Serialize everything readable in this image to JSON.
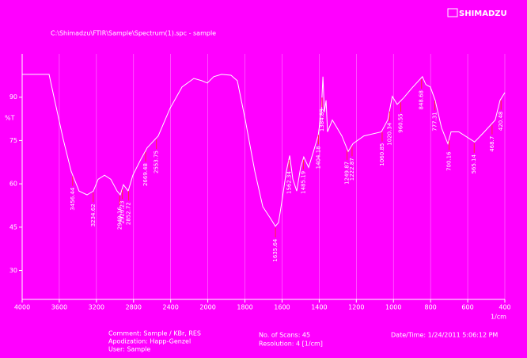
{
  "chart_data": {
    "type": "line",
    "title": "C:\\Shimadzu\\FTIR\\Sample\\Spectrum(1).spc - sample",
    "brand": "SHIMADZU",
    "ylabel": "%T",
    "xlabel": "1/cm",
    "color": "#ffffff",
    "background": "#ff00ff",
    "grid": true,
    "xlim": [
      4000,
      400
    ],
    "ylim": [
      20,
      105
    ],
    "xticks": [
      4000,
      3600,
      3200,
      2800,
      2400,
      2000,
      1800,
      1600,
      1400,
      1200,
      1000,
      800,
      600,
      400
    ],
    "yticks": [
      30,
      45,
      60,
      75,
      90
    ],
    "x": [
      4000,
      3710,
      3659,
      3557,
      3472,
      3387,
      3301,
      3233,
      3182,
      3113,
      3045,
      2977,
      2943,
      2909,
      2858,
      2807,
      2721,
      2653,
      2534,
      2406,
      2278,
      2150,
      2065,
      2005,
      1968,
      1926,
      1875,
      1841,
      1798,
      1747,
      1704,
      1662,
      1636,
      1619,
      1602,
      1577,
      1559,
      1542,
      1521,
      1500,
      1483,
      1457,
      1431,
      1406,
      1389,
      1380,
      1372,
      1363,
      1355,
      1329,
      1278,
      1244,
      1218,
      1159,
      1065,
      1031,
      1006,
      980,
      946,
      903,
      844,
      826,
      801,
      775,
      741,
      707,
      690,
      648,
      563,
      511,
      452,
      426,
      400
    ],
    "values": [
      97.9,
      97.9,
      90.3,
      75.3,
      64.4,
      57.5,
      56.2,
      57.5,
      61.6,
      63.0,
      61.6,
      57.5,
      56.2,
      59.7,
      57.5,
      63.0,
      68.5,
      72.5,
      76.6,
      86.2,
      93.5,
      96.5,
      95.7,
      94.9,
      97.1,
      97.9,
      97.6,
      95.7,
      82.1,
      64.4,
      52.1,
      48.0,
      45.3,
      46.6,
      53.5,
      64.4,
      69.8,
      61.6,
      57.5,
      65.7,
      69.3,
      65.7,
      71.2,
      76.6,
      84.8,
      97.1,
      84.8,
      88.9,
      78.0,
      82.1,
      76.6,
      71.2,
      73.9,
      76.6,
      78.0,
      82.1,
      90.3,
      87.5,
      89.7,
      93.0,
      97.1,
      94.4,
      93.5,
      88.9,
      79.4,
      73.9,
      78.0,
      78.0,
      74.5,
      78.0,
      82.1,
      88.9,
      91.6
    ],
    "peaks": [
      3456.44,
      3234.62,
      2949.16,
      2920.23,
      2852.72,
      2669.48,
      2553.75,
      1635.64,
      1562.34,
      1485.19,
      1404.18,
      1384.89,
      1249.87,
      1222.87,
      1060.85,
      1020.34,
      960.55,
      848.68,
      777.31,
      700.16,
      565.14,
      468.7,
      420.48
    ],
    "footer": [
      "Comment: Sample / KBr, RES",
      "No. of Scans: 45",
      "Resolution: 4 [1/cm]",
      "Apodization: Happ-Genzel",
      "User: Sample",
      "Date/Time: 1/24/2011 5:06:12 PM"
    ]
  }
}
